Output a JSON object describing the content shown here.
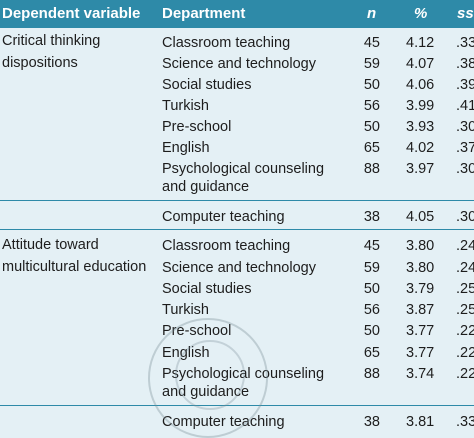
{
  "header": {
    "dependent_variable": "Dependent variable",
    "department": "Department",
    "n": "n",
    "percent": "%",
    "ss": "ss"
  },
  "groups": [
    {
      "dependent": "Critical thinking dispositions",
      "rows": [
        {
          "department": "Classroom teaching",
          "n": "45",
          "mean": "4.12",
          "ss": ".33"
        },
        {
          "department": "Science and technology",
          "n": "59",
          "mean": "4.07",
          "ss": ".38"
        },
        {
          "department": "Social studies",
          "n": "50",
          "mean": "4.06",
          "ss": ".39"
        },
        {
          "department": "Turkish",
          "n": "56",
          "mean": "3.99",
          "ss": ".41"
        },
        {
          "department": "Pre-school",
          "n": "50",
          "mean": "3.93",
          "ss": ".30"
        },
        {
          "department": "English",
          "n": "65",
          "mean": "4.02",
          "ss": ".37"
        },
        {
          "department": "Psychological counseling",
          "department2": "and guidance",
          "n": "88",
          "mean": "3.97",
          "ss": ".30"
        },
        {
          "department": "Computer teaching",
          "n": "38",
          "mean": "4.05",
          "ss": ".30"
        }
      ]
    },
    {
      "dependent": "Attitude toward multicultural education",
      "rows": [
        {
          "department": "Classroom teaching",
          "n": "45",
          "mean": "3.80",
          "ss": ".24"
        },
        {
          "department": "Science and technology",
          "n": "59",
          "mean": "3.80",
          "ss": ".24"
        },
        {
          "department": "Social studies",
          "n": "50",
          "mean": "3.79",
          "ss": ".25"
        },
        {
          "department": "Turkish",
          "n": "56",
          "mean": "3.87",
          "ss": ".25"
        },
        {
          "department": "Pre-school",
          "n": "50",
          "mean": "3.77",
          "ss": ".22"
        },
        {
          "department": "English",
          "n": "65",
          "mean": "3.77",
          "ss": ".22"
        },
        {
          "department": "Psychological counseling",
          "department2": "and guidance",
          "n": "88",
          "mean": "3.74",
          "ss": ".22"
        },
        {
          "department": "Computer teaching",
          "n": "38",
          "mean": "3.81",
          "ss": ".33"
        }
      ]
    }
  ]
}
